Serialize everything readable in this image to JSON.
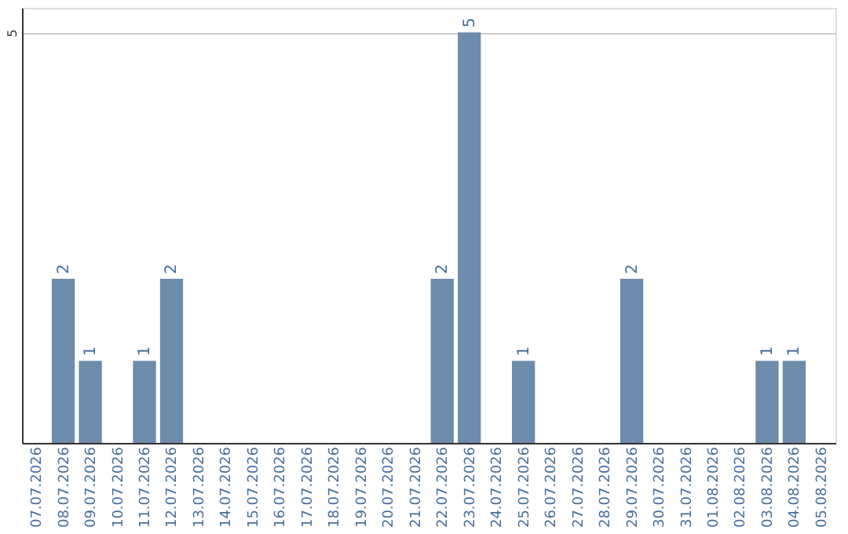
{
  "chart_data": {
    "type": "bar",
    "categories": [
      "07.07.2026",
      "08.07.2026",
      "09.07.2026",
      "10.07.2026",
      "11.07.2026",
      "12.07.2026",
      "13.07.2026",
      "14.07.2026",
      "15.07.2026",
      "16.07.2026",
      "17.07.2026",
      "18.07.2026",
      "19.07.2026",
      "20.07.2026",
      "21.07.2026",
      "22.07.2026",
      "23.07.2026",
      "24.07.2026",
      "25.07.2026",
      "26.07.2026",
      "27.07.2026",
      "28.07.2026",
      "29.07.2026",
      "30.07.2026",
      "31.07.2026",
      "01.08.2026",
      "02.08.2026",
      "03.08.2026",
      "04.08.2026",
      "05.08.2026"
    ],
    "values": [
      0,
      2,
      1,
      0,
      1,
      2,
      0,
      0,
      0,
      0,
      0,
      0,
      0,
      0,
      0,
      2,
      5,
      0,
      1,
      0,
      0,
      0,
      2,
      0,
      0,
      0,
      0,
      1,
      1,
      0
    ],
    "value_labels": [
      null,
      "2",
      "1",
      null,
      "1",
      "2",
      null,
      null,
      null,
      null,
      null,
      null,
      null,
      null,
      null,
      "2",
      "5",
      null,
      "1",
      null,
      null,
      null,
      "2",
      null,
      null,
      null,
      null,
      "1",
      "1",
      null
    ],
    "color": "#6d8bab",
    "ylim": [
      0,
      5.3
    ],
    "yticks": [
      5
    ],
    "grid": "y"
  }
}
